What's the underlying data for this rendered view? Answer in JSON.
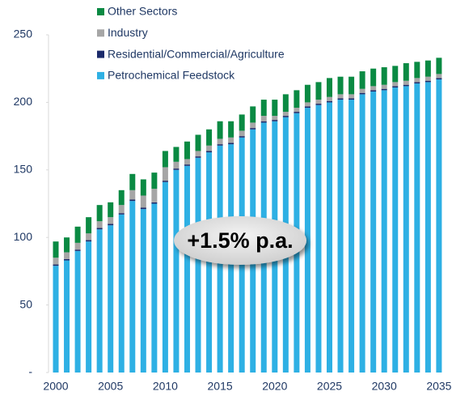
{
  "chart_data": {
    "type": "stacked_bar",
    "categories": [
      "2000",
      null,
      null,
      null,
      null,
      "2005",
      null,
      null,
      null,
      null,
      "2010",
      null,
      null,
      null,
      null,
      "2015",
      null,
      null,
      null,
      null,
      "2020",
      null,
      null,
      null,
      null,
      "2025",
      null,
      null,
      null,
      null,
      "2030",
      null,
      null,
      null,
      null,
      "2035"
    ],
    "series": [
      {
        "name": "Petrochemical Feedstock",
        "color": "#2eb0e4",
        "values": [
          79,
          83,
          90,
          97,
          106,
          109,
          117,
          127,
          121,
          125,
          141,
          150,
          153,
          159,
          163,
          168,
          169,
          174,
          180,
          185,
          186,
          189,
          192,
          196,
          198,
          200,
          202,
          202,
          206,
          208,
          209,
          211,
          212,
          214,
          215,
          217
        ]
      },
      {
        "name": "Residential/Commercial/Agriculture",
        "color": "#1b2a6b",
        "values": [
          1,
          1,
          1,
          1,
          1,
          1,
          1,
          1,
          1,
          1,
          1,
          1,
          1,
          1,
          1,
          1,
          1,
          1,
          1,
          1,
          1,
          1,
          1,
          1,
          1,
          1,
          1,
          1,
          1,
          1,
          1,
          1,
          1,
          1,
          1,
          1
        ]
      },
      {
        "name": "Industry",
        "color": "#a6a6a6",
        "values": [
          5,
          5,
          5,
          5,
          5,
          5,
          6,
          7,
          9,
          10,
          10,
          5,
          4,
          4,
          4,
          4,
          4,
          4,
          4,
          4,
          3,
          3,
          3,
          3,
          3,
          3,
          3,
          3,
          3,
          3,
          3,
          3,
          3,
          3,
          3,
          3
        ]
      },
      {
        "name": "Other Sectors",
        "color": "#0a8a43",
        "values": [
          12,
          11,
          12,
          12,
          12,
          11,
          11,
          12,
          12,
          12,
          12,
          11,
          13,
          12,
          12,
          13,
          12,
          12,
          12,
          12,
          12,
          13,
          13,
          13,
          13,
          14,
          13,
          13,
          13,
          13,
          13,
          12,
          13,
          12,
          12,
          12
        ]
      }
    ],
    "ylim": [
      0,
      250
    ],
    "yticks": [
      {
        "value": 0,
        "label": "-"
      },
      50,
      100,
      150,
      200,
      250
    ],
    "annotation": "+1.5% p.a.",
    "legend": "top-left"
  }
}
